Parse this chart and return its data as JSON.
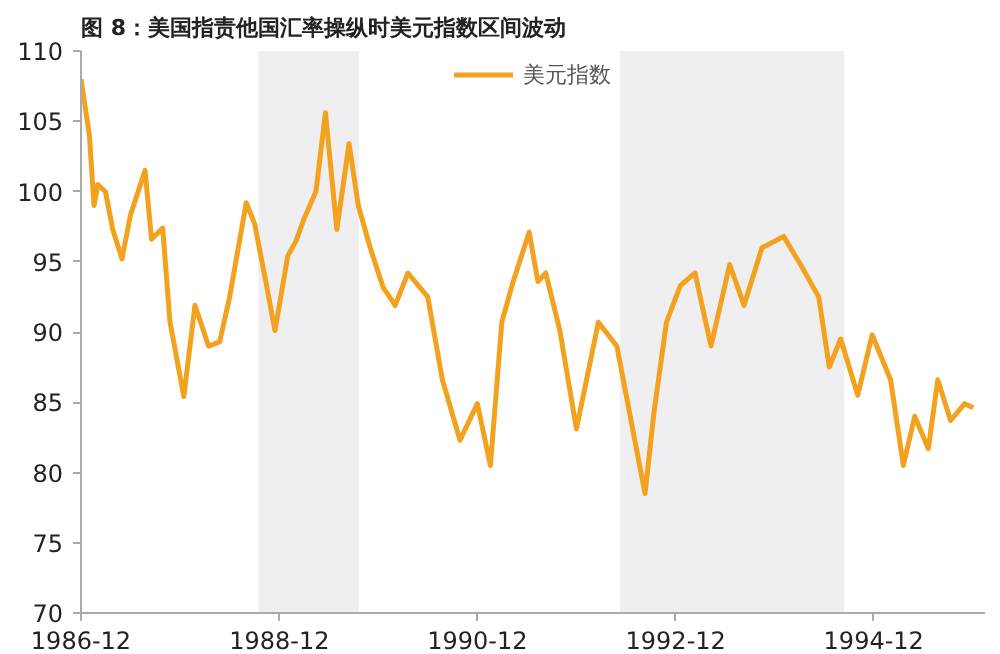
{
  "chart_data": {
    "type": "line",
    "title": "图 8：美国指责他国汇率操纵时美元指数区间波动",
    "xlim": [
      "1986-12-01",
      "1996-01-15"
    ],
    "ylim": [
      70,
      110
    ],
    "yticks": [
      70,
      75,
      80,
      85,
      90,
      95,
      100,
      105,
      110
    ],
    "xticks": [
      {
        "value": "1986-12-01",
        "label": "1986-12"
      },
      {
        "value": "1988-12-01",
        "label": "1988-12"
      },
      {
        "value": "1990-12-01",
        "label": "1990-12"
      },
      {
        "value": "1992-12-01",
        "label": "1992-12"
      },
      {
        "value": "1994-12-01",
        "label": "1994-12"
      }
    ],
    "grid": false,
    "legend": "top",
    "line_style": "solid",
    "marker": "none",
    "bands": [
      {
        "axis": "x",
        "from": "1988-09-15",
        "to": "1989-09-20",
        "color": "#efeff1"
      },
      {
        "axis": "x",
        "from": "1992-05-10",
        "to": "1994-08-15",
        "color": "#efeff1"
      }
    ],
    "series": [
      {
        "name": "美元指数",
        "color": "#f3a21f",
        "x": [
          "1986-12-01",
          "1987-01-01",
          "1987-01-18",
          "1987-02-01",
          "1987-03-01",
          "1987-03-28",
          "1987-05-01",
          "1987-06-01",
          "1987-07-25",
          "1987-08-18",
          "1987-09-28",
          "1987-10-25",
          "1987-12-15",
          "1988-01-25",
          "1988-03-15",
          "1988-04-25",
          "1988-06-01",
          "1988-08-01",
          "1988-09-01",
          "1988-10-12",
          "1988-11-15",
          "1989-01-01",
          "1989-02-01",
          "1989-03-01",
          "1989-04-15",
          "1989-05-20",
          "1989-07-01",
          "1989-08-15",
          "1989-09-18",
          "1989-11-01",
          "1989-12-18",
          "1990-02-01",
          "1990-03-20",
          "1990-06-01",
          "1990-07-25",
          "1990-09-28",
          "1990-12-01",
          "1991-01-18",
          "1991-03-01",
          "1991-04-12",
          "1991-06-10",
          "1991-07-12",
          "1991-08-10",
          "1991-10-01",
          "1991-12-01",
          "1992-02-20",
          "1992-04-28",
          "1992-07-12",
          "1992-08-10",
          "1992-09-12",
          "1992-10-28",
          "1992-12-18",
          "1993-02-10",
          "1993-04-10",
          "1993-06-18",
          "1993-08-10",
          "1993-10-15",
          "1994-01-03",
          "1994-03-06",
          "1994-05-12",
          "1994-06-20",
          "1994-08-01",
          "1994-10-03",
          "1994-11-25",
          "1995-02-01",
          "1995-03-20",
          "1995-05-01",
          "1995-06-20",
          "1995-07-25",
          "1995-09-10",
          "1995-11-01",
          "1995-12-03"
        ],
        "values": [
          108,
          104,
          99,
          100.5,
          100,
          97.3,
          95.2,
          98.3,
          101.5,
          96.6,
          97.4,
          90.7,
          85.4,
          91.9,
          89,
          89.3,
          92.5,
          99.2,
          97.7,
          93.6,
          90.1,
          95.4,
          96.5,
          98,
          100,
          105.6,
          97.3,
          103.4,
          99,
          96,
          93.2,
          91.9,
          94.2,
          92.5,
          86.6,
          82.3,
          84.9,
          80.5,
          90.7,
          93.6,
          97.1,
          93.6,
          94.2,
          90.1,
          83.1,
          90.7,
          89,
          81.4,
          78.5,
          84.3,
          90.7,
          93.3,
          94.2,
          89,
          94.8,
          91.9,
          96,
          96.8,
          94.8,
          92.5,
          87.5,
          89.5,
          85.5,
          89.8,
          86.6,
          80.5,
          84,
          81.7,
          86.6,
          83.7,
          84.9,
          84.6
        ]
      }
    ]
  }
}
